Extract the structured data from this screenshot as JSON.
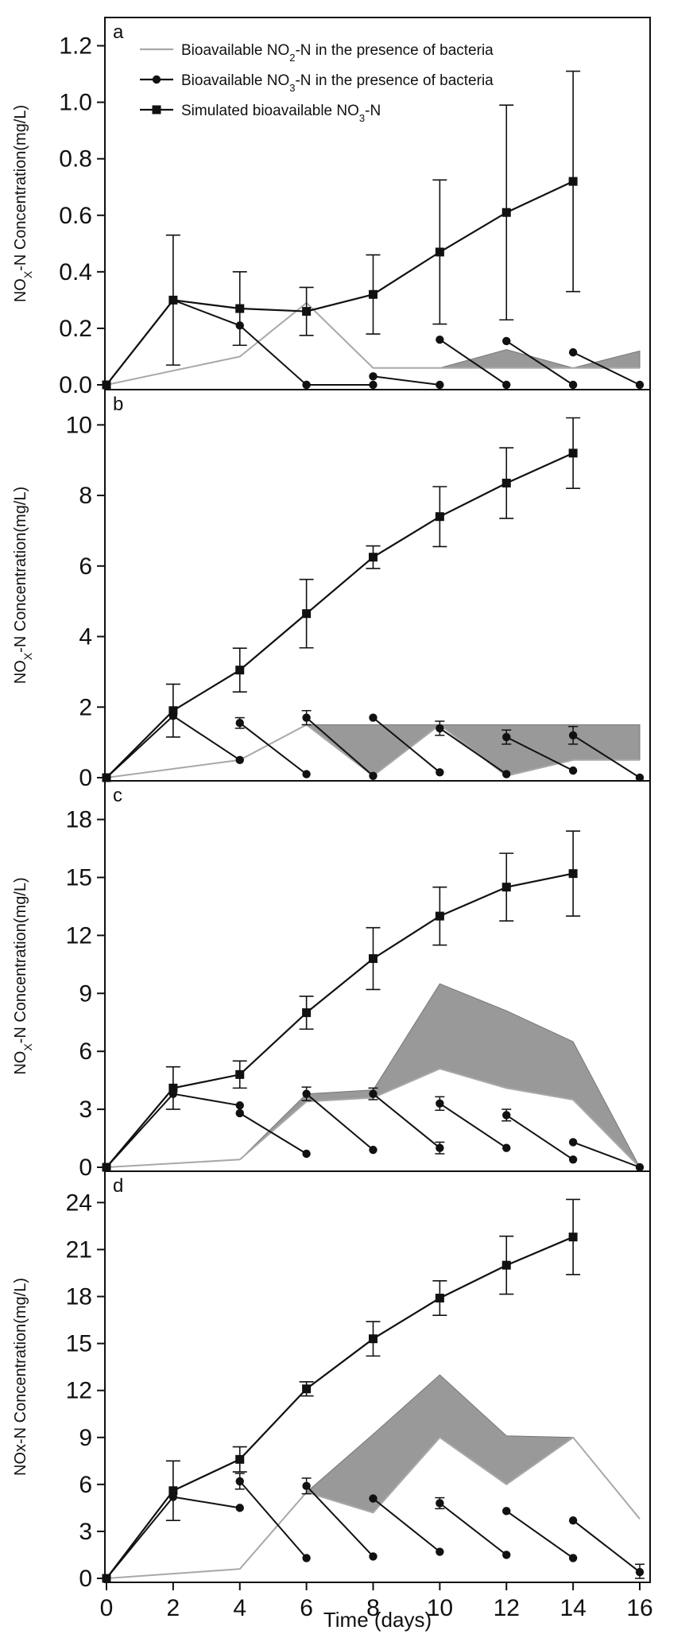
{
  "chart_data": {
    "type": "line",
    "xlabel": "Time (days)",
    "x_ticks": [
      "0",
      "2",
      "4",
      "6",
      "8",
      "10",
      "12",
      "14",
      "16"
    ],
    "xlim": [
      0,
      16
    ],
    "legend": {
      "placement": "top-left of panel a",
      "entries": [
        {
          "id": "no2",
          "prefix": "Bioavailable NO",
          "sub": "2",
          "suffix": "-N in the presence of bacteria"
        },
        {
          "id": "no3",
          "prefix": "Bioavailable NO",
          "sub": "3",
          "suffix": "-N in the presence of bacteria"
        },
        {
          "id": "sim",
          "prefix": "Simulated bioavailable NO",
          "sub": "3",
          "suffix": "-N"
        }
      ]
    },
    "panels": [
      {
        "letter": "a",
        "ylabel": {
          "main": "NO",
          "sub": "X",
          "rest": "-N Concentration(mg/L)"
        },
        "ylim": [
          0,
          1.3
        ],
        "y_ticks": [
          "0.0",
          "0.2",
          "0.4",
          "0.6",
          "0.8",
          "1.0",
          "1.2"
        ],
        "y_tick_values": [
          0,
          0.2,
          0.4,
          0.6,
          0.8,
          1.0,
          1.2
        ],
        "simulated": {
          "x": [
            0,
            2,
            4,
            6,
            8,
            10,
            12,
            14
          ],
          "y": [
            0,
            0.3,
            0.27,
            0.26,
            0.32,
            0.47,
            0.61,
            0.72
          ],
          "err": [
            0,
            0.23,
            0.13,
            0.085,
            0.14,
            0.255,
            0.38,
            0.39
          ]
        },
        "no3_segments": [
          {
            "x": [
              0,
              2,
              4,
              6
            ],
            "y": [
              0,
              0.3,
              0.21,
              0
            ]
          },
          {
            "x": [
              6,
              8
            ],
            "y": [
              0,
              0
            ]
          },
          {
            "x": [
              8,
              10
            ],
            "y": [
              0.03,
              0
            ]
          },
          {
            "x": [
              10,
              12
            ],
            "y": [
              0.16,
              0
            ]
          },
          {
            "x": [
              12,
              14
            ],
            "y": [
              0.155,
              0
            ]
          },
          {
            "x": [
              14,
              16
            ],
            "y": [
              0.115,
              0
            ]
          }
        ],
        "no3_err": [],
        "no2_lower": {
          "x": [
            0,
            2,
            4,
            6,
            8,
            10,
            12,
            14,
            16
          ],
          "y": [
            0,
            0.05,
            0.1,
            0.29,
            0.06,
            0.06,
            0.06,
            0.06,
            0.06
          ]
        },
        "no2_upper": {
          "x": [
            0,
            2,
            4,
            6,
            8,
            10,
            12,
            14,
            16
          ],
          "y": [
            0,
            0.05,
            0.1,
            0.29,
            0.06,
            0.06,
            0.125,
            0.06,
            0.12
          ]
        }
      },
      {
        "letter": "b",
        "ylabel": {
          "main": "NO",
          "sub": "X",
          "rest": "-N Concentration(mg/L)"
        },
        "ylim": [
          0,
          11
        ],
        "y_ticks": [
          "0",
          "2",
          "4",
          "6",
          "8",
          "10"
        ],
        "y_tick_values": [
          0,
          2,
          4,
          6,
          8,
          10
        ],
        "simulated": {
          "x": [
            0,
            2,
            4,
            6,
            8,
            10,
            12,
            14
          ],
          "y": [
            0,
            1.9,
            3.05,
            4.65,
            6.25,
            7.4,
            8.35,
            9.2
          ],
          "err": [
            0,
            0.75,
            0.62,
            0.97,
            0.32,
            0.85,
            1.0,
            1.0
          ]
        },
        "no3_segments": [
          {
            "x": [
              0,
              2,
              4
            ],
            "y": [
              0,
              1.75,
              0.5
            ]
          },
          {
            "x": [
              4,
              6
            ],
            "y": [
              1.55,
              0.1
            ]
          },
          {
            "x": [
              6,
              8
            ],
            "y": [
              1.7,
              0.05
            ]
          },
          {
            "x": [
              8,
              10
            ],
            "y": [
              1.7,
              0.15
            ]
          },
          {
            "x": [
              10,
              12
            ],
            "y": [
              1.4,
              0.1
            ]
          },
          {
            "x": [
              12,
              14
            ],
            "y": [
              1.15,
              0.2
            ]
          },
          {
            "x": [
              14,
              16
            ],
            "y": [
              1.2,
              0
            ]
          }
        ],
        "no3_err": [
          {
            "x": 4,
            "y": 1.55,
            "err": 0.15
          },
          {
            "x": 6,
            "y": 1.7,
            "err": 0.2
          },
          {
            "x": 10,
            "y": 1.4,
            "err": 0.2
          },
          {
            "x": 12,
            "y": 1.15,
            "err": 0.2
          },
          {
            "x": 14,
            "y": 1.2,
            "err": 0.25
          }
        ],
        "no2_lower": {
          "x": [
            0,
            4,
            6,
            8,
            10,
            12,
            14,
            16
          ],
          "y": [
            0,
            0.5,
            1.5,
            0.05,
            1.5,
            0.05,
            0.5,
            0.5
          ]
        },
        "no2_upper": {
          "x": [
            0,
            4,
            6,
            8,
            10,
            12,
            14,
            16
          ],
          "y": [
            0,
            0.5,
            1.5,
            1.5,
            1.5,
            1.5,
            1.5,
            1.5
          ]
        }
      },
      {
        "letter": "c",
        "ylabel": {
          "main": "NO",
          "sub": "X",
          "rest": "-N Concentration(mg/L)"
        },
        "ylim": [
          0,
          20
        ],
        "y_ticks": [
          "0",
          "3",
          "6",
          "9",
          "12",
          "15",
          "18"
        ],
        "y_tick_values": [
          0,
          3,
          6,
          9,
          12,
          15,
          18
        ],
        "simulated": {
          "x": [
            0,
            2,
            4,
            6,
            8,
            10,
            12,
            14
          ],
          "y": [
            0,
            4.1,
            4.8,
            8.0,
            10.8,
            13.0,
            14.5,
            15.2
          ],
          "err": [
            0,
            1.1,
            0.7,
            0.85,
            1.6,
            1.5,
            1.75,
            2.2
          ]
        },
        "no3_segments": [
          {
            "x": [
              0,
              2,
              4
            ],
            "y": [
              0,
              3.8,
              3.2
            ]
          },
          {
            "x": [
              4,
              6
            ],
            "y": [
              2.8,
              0.7
            ]
          },
          {
            "x": [
              6,
              8
            ],
            "y": [
              3.8,
              0.9
            ]
          },
          {
            "x": [
              8,
              10
            ],
            "y": [
              3.8,
              1.0
            ]
          },
          {
            "x": [
              10,
              12
            ],
            "y": [
              3.3,
              1.0
            ]
          },
          {
            "x": [
              12,
              14
            ],
            "y": [
              2.7,
              0.4
            ]
          },
          {
            "x": [
              14,
              16
            ],
            "y": [
              1.3,
              0
            ]
          }
        ],
        "no3_err": [
          {
            "x": 6,
            "y": 3.8,
            "err": 0.35
          },
          {
            "x": 8,
            "y": 3.8,
            "err": 0.3
          },
          {
            "x": 10,
            "y": 3.3,
            "err": 0.35
          },
          {
            "x": 12,
            "y": 2.7,
            "err": 0.3
          },
          {
            "x": 10,
            "y": 1.0,
            "err": 0.3
          }
        ],
        "no2_lower": {
          "x": [
            0,
            4,
            6,
            8,
            10,
            12,
            14,
            16
          ],
          "y": [
            0,
            0.4,
            3.4,
            3.6,
            5.1,
            4.1,
            3.5,
            0
          ]
        },
        "no2_upper": {
          "x": [
            0,
            4,
            6,
            8,
            10,
            12,
            14,
            16
          ],
          "y": [
            0,
            0.4,
            3.8,
            4.0,
            9.5,
            8.1,
            6.5,
            0
          ]
        }
      },
      {
        "letter": "d",
        "ylabel": {
          "main": "NOx-N Concentration(mg/L)",
          "sub": "",
          "rest": ""
        },
        "ylim": [
          0,
          26
        ],
        "y_ticks": [
          "0",
          "3",
          "6",
          "9",
          "12",
          "15",
          "18",
          "21",
          "24"
        ],
        "y_tick_values": [
          0,
          3,
          6,
          9,
          12,
          15,
          18,
          21,
          24
        ],
        "simulated": {
          "x": [
            0,
            2,
            4,
            6,
            8,
            10,
            12,
            14
          ],
          "y": [
            0,
            5.6,
            7.6,
            12.1,
            15.3,
            17.9,
            20.0,
            21.8
          ],
          "err": [
            0,
            1.9,
            0.8,
            0.45,
            1.1,
            1.1,
            1.85,
            2.4
          ]
        },
        "no3_segments": [
          {
            "x": [
              0,
              2,
              4
            ],
            "y": [
              0,
              5.2,
              4.5
            ]
          },
          {
            "x": [
              4,
              6
            ],
            "y": [
              6.2,
              1.3
            ]
          },
          {
            "x": [
              6,
              8
            ],
            "y": [
              5.9,
              1.4
            ]
          },
          {
            "x": [
              8,
              10
            ],
            "y": [
              5.1,
              1.7
            ]
          },
          {
            "x": [
              10,
              12
            ],
            "y": [
              4.8,
              1.5
            ]
          },
          {
            "x": [
              12,
              14
            ],
            "y": [
              4.3,
              1.3
            ]
          },
          {
            "x": [
              14,
              16
            ],
            "y": [
              3.7,
              0.4
            ]
          }
        ],
        "no3_err": [
          {
            "x": 4,
            "y": 6.2,
            "err": 0.5
          },
          {
            "x": 6,
            "y": 5.9,
            "err": 0.5
          },
          {
            "x": 10,
            "y": 4.8,
            "err": 0.35
          },
          {
            "x": 16,
            "y": 0.4,
            "err": 0.5
          }
        ],
        "no2_lower": {
          "x": [
            0,
            4,
            6,
            8,
            10,
            12,
            14,
            16
          ],
          "y": [
            0,
            0.6,
            5.5,
            4.2,
            9.0,
            6.0,
            9.0,
            3.8
          ]
        },
        "no2_upper": {
          "x": [
            0,
            4,
            6,
            8,
            10,
            12,
            14,
            16
          ],
          "y": [
            0,
            0.6,
            5.5,
            9.2,
            13.0,
            9.1,
            9.0,
            3.8
          ]
        }
      }
    ]
  }
}
